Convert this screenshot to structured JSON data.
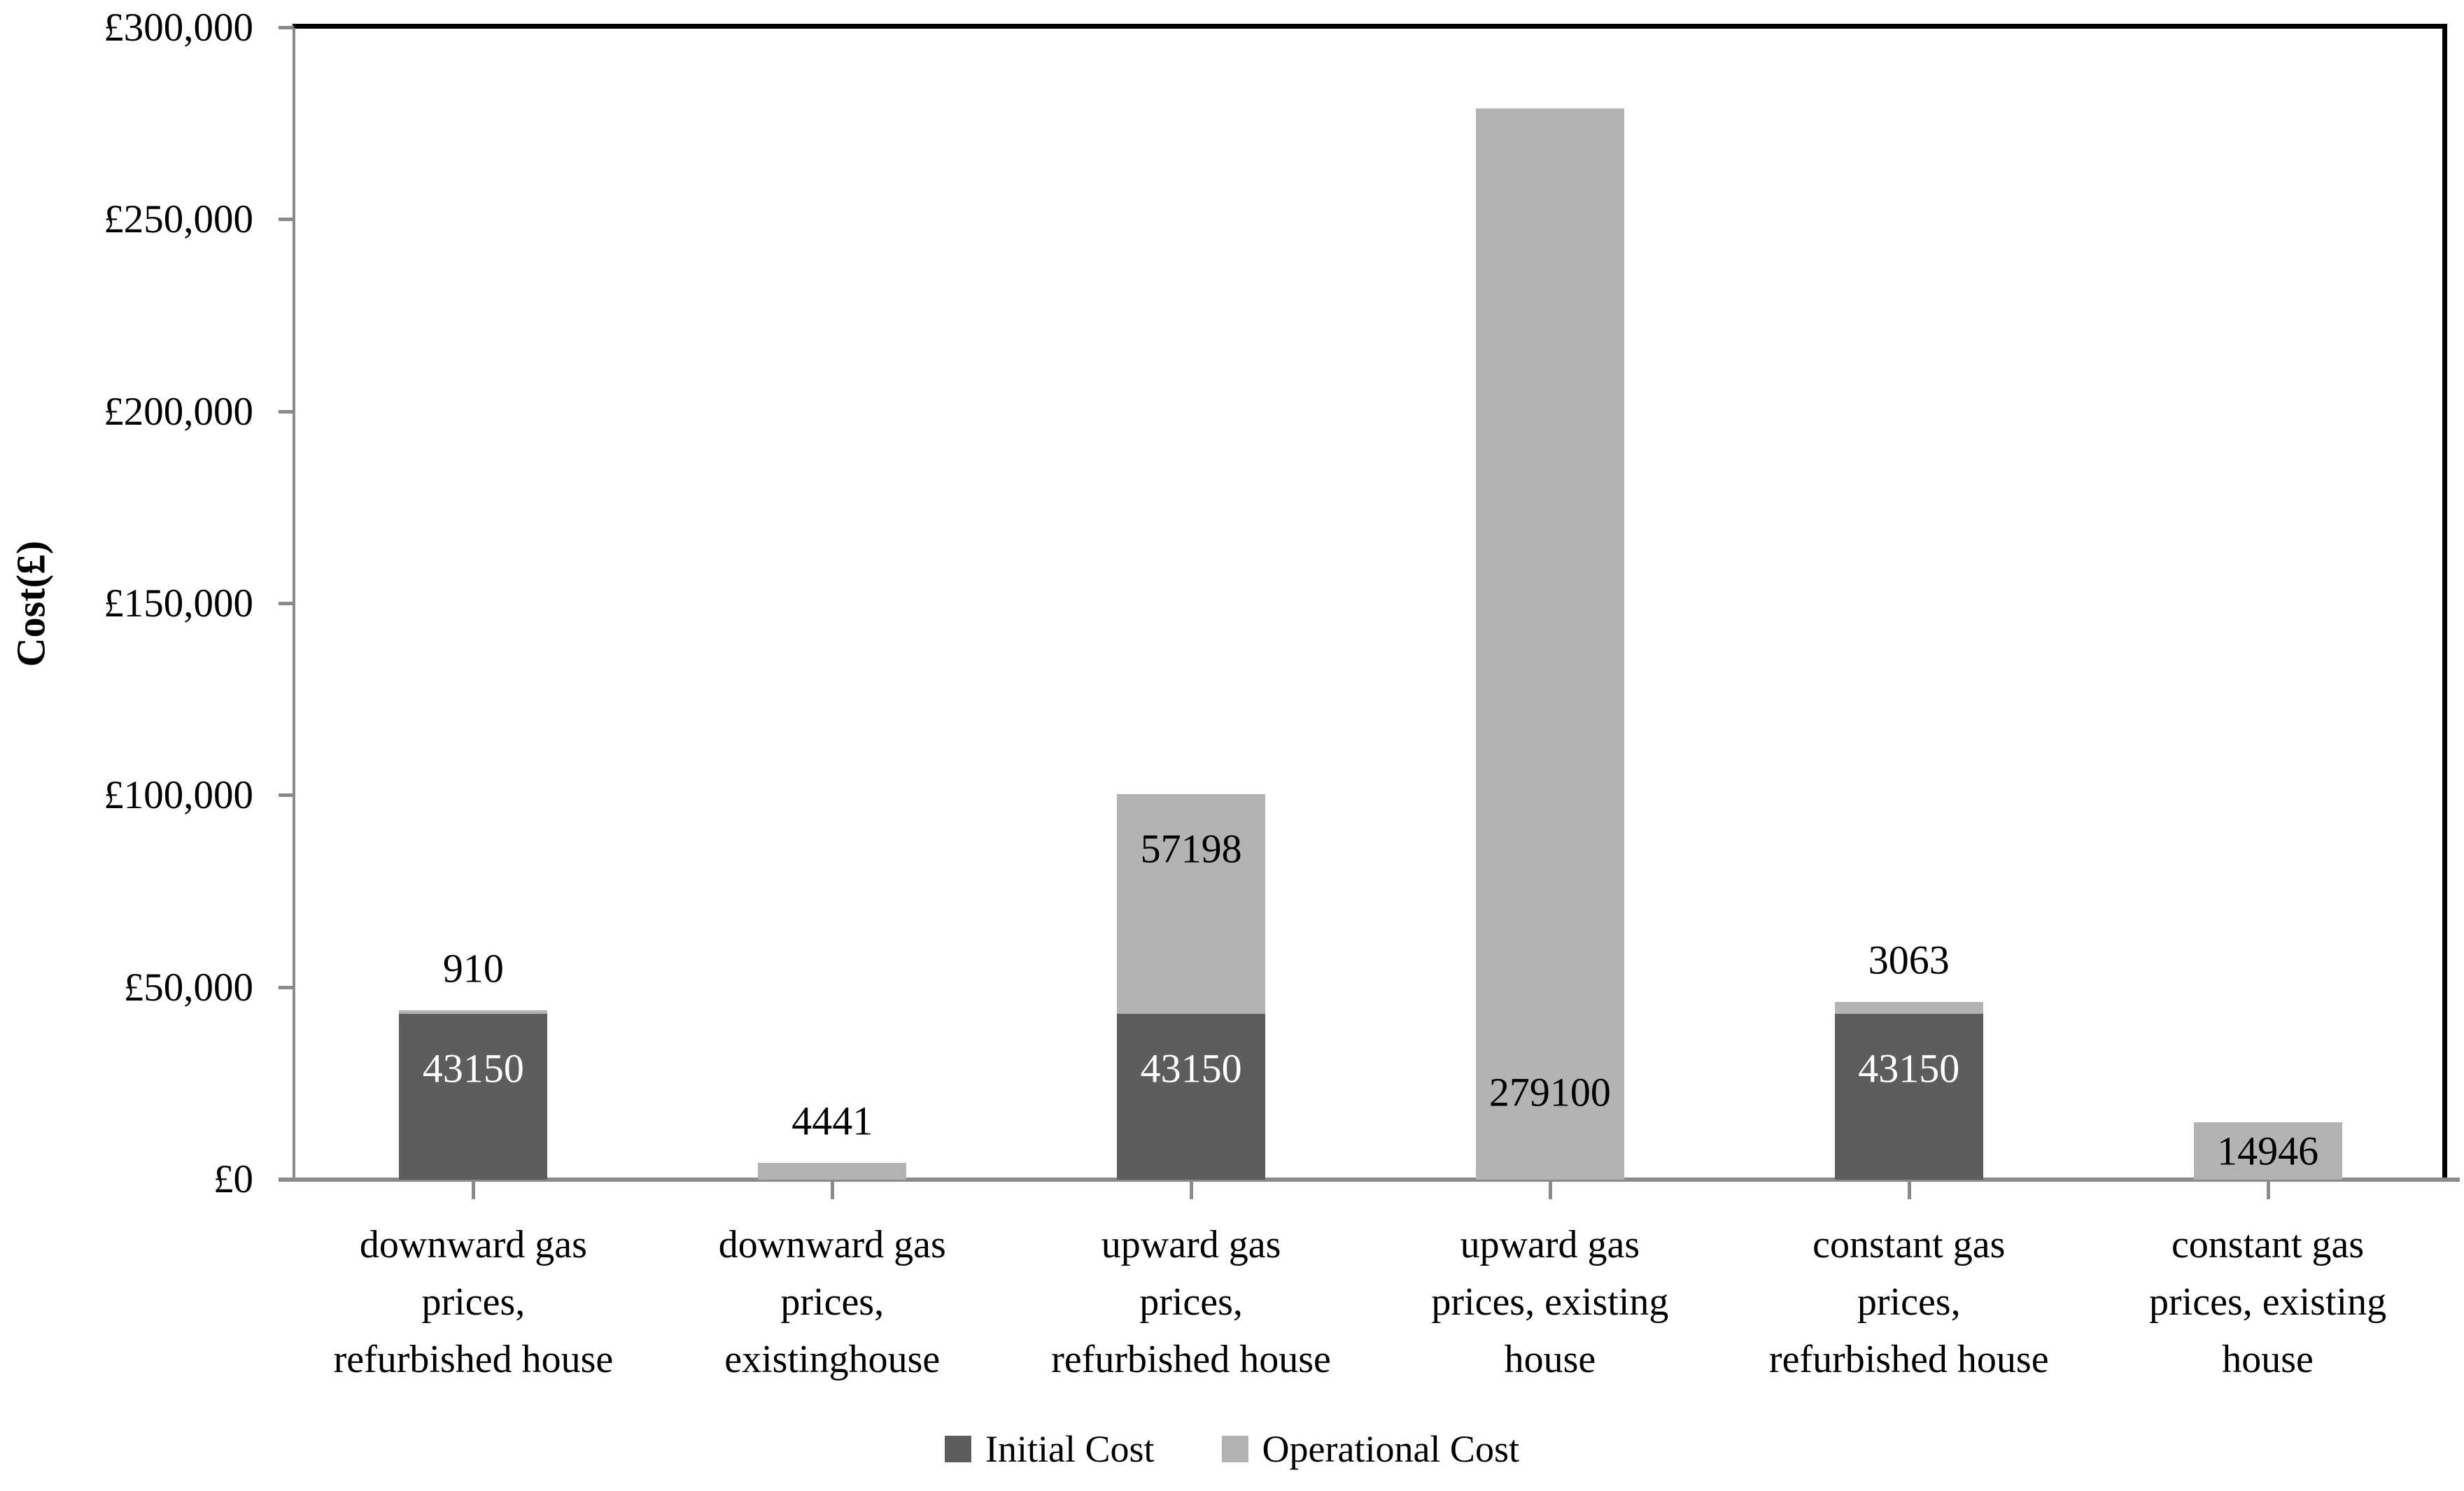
{
  "chart_data": {
    "type": "bar",
    "stacked": true,
    "title": "",
    "xlabel": "",
    "ylabel": "Cost(£)",
    "ylim": [
      0,
      300000
    ],
    "ytick_step": 50000,
    "ytick_labels": [
      "£0",
      "£50,000",
      "£100,000",
      "£150,000",
      "£200,000",
      "£250,000",
      "£300,000"
    ],
    "grid": false,
    "legend_position": "bottom-center",
    "categories": [
      {
        "label": "downward gas prices, refurbished house",
        "lines": [
          "downward gas",
          "prices,",
          "refurbished house"
        ]
      },
      {
        "label": "downward gas prices, existinghouse",
        "lines": [
          "downward gas",
          "prices,",
          "existinghouse"
        ]
      },
      {
        "label": "upward gas prices, refurbished house",
        "lines": [
          "upward gas",
          "prices,",
          "refurbished house"
        ]
      },
      {
        "label": "upward gas prices, existing house",
        "lines": [
          "upward gas",
          "prices, existing",
          "house"
        ]
      },
      {
        "label": "constant gas prices, refurbished house",
        "lines": [
          "constant gas",
          "prices,",
          "refurbished house"
        ]
      },
      {
        "label": "constant gas prices, existing house",
        "lines": [
          "constant gas",
          "prices, existing",
          "house"
        ]
      }
    ],
    "series": [
      {
        "name": "Initial Cost",
        "color": "#5d5d5d",
        "label_color": "#ffffff",
        "values": [
          43150,
          0,
          43150,
          0,
          43150,
          0
        ],
        "label_positions": [
          "inside-top",
          null,
          "inside-top",
          null,
          "inside-top",
          null
        ]
      },
      {
        "name": "Operational Cost",
        "color": "#b3b3b3",
        "label_color": "#000000",
        "values": [
          910,
          4441,
          57198,
          279100,
          3063,
          14946
        ],
        "label_positions": [
          "above",
          "above",
          "inside-top",
          "inside-bottom",
          "above",
          "inside-center"
        ]
      }
    ]
  },
  "colors": {
    "initial_cost": "#5d5d5d",
    "operational_cost": "#b3b3b3",
    "axis_line": "#8a8a8a",
    "plot_border": "#000000",
    "background": "#ffffff"
  },
  "legend": {
    "items": [
      {
        "label": "Initial Cost",
        "color": "#5d5d5d"
      },
      {
        "label": "Operational Cost",
        "color": "#b3b3b3"
      }
    ]
  }
}
